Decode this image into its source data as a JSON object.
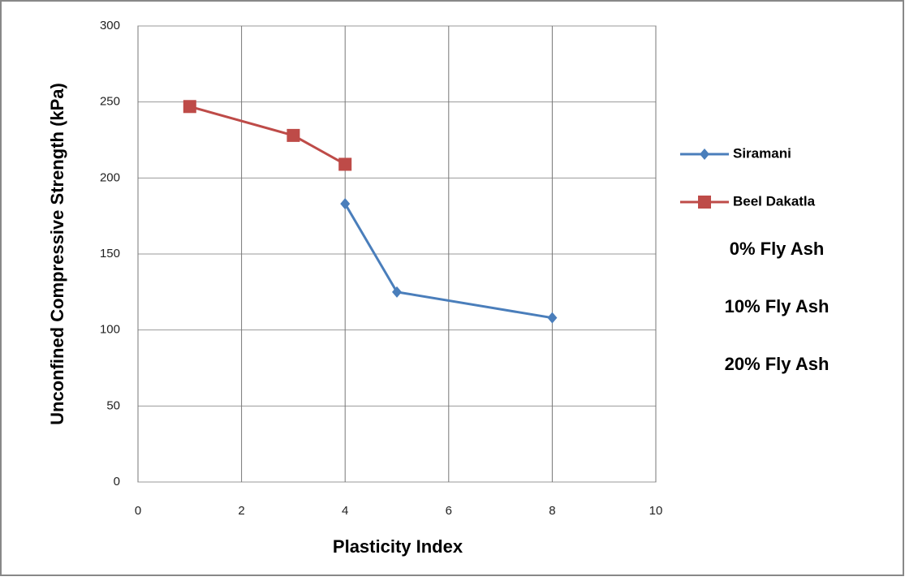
{
  "chart_data": {
    "type": "line",
    "xlabel": "Plasticity Index",
    "ylabel": "Unconfined Compressive Strength (kPa)",
    "series": [
      {
        "name": "Siramani",
        "color": "#4a7ebb",
        "marker": "diamond",
        "x": [
          4,
          5,
          8
        ],
        "values": [
          183,
          125,
          108
        ]
      },
      {
        "name": "Beel Dakatla",
        "color": "#be4b48",
        "marker": "square",
        "x": [
          1,
          3,
          4
        ],
        "values": [
          247,
          228,
          209
        ]
      }
    ],
    "annotations": [
      "0% Fly Ash",
      "10% Fly Ash",
      "20% Fly Ash"
    ],
    "xlim": [
      0,
      10
    ],
    "xticks": [
      0,
      2,
      4,
      6,
      8,
      10
    ],
    "ylim": [
      0,
      300
    ],
    "yticks": [
      0,
      50,
      100,
      150,
      200,
      250,
      300
    ],
    "grid": true
  }
}
